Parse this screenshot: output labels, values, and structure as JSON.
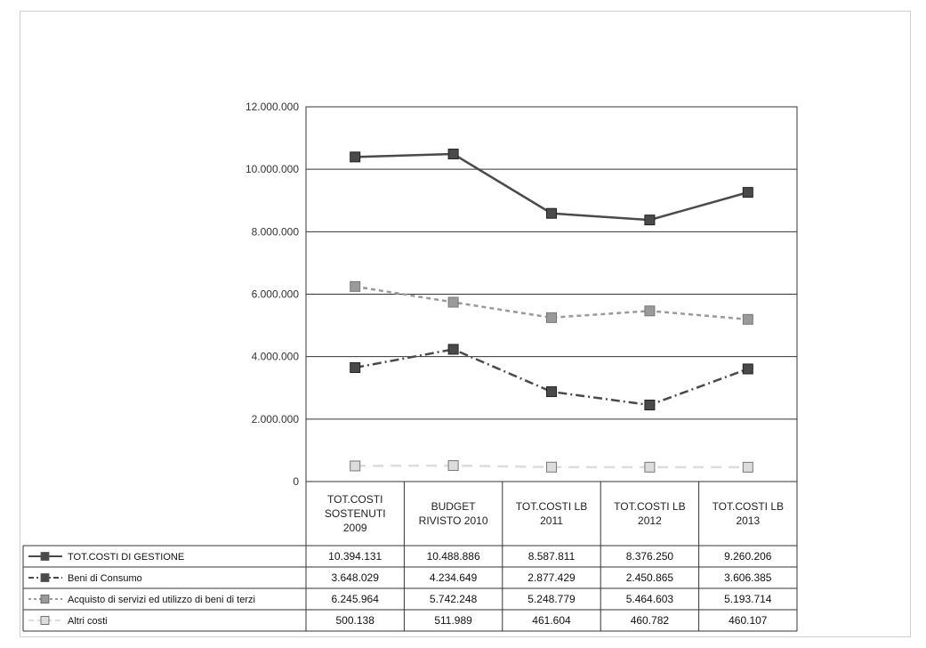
{
  "chart_data": {
    "type": "line",
    "ylim": [
      0,
      12000000
    ],
    "y_ticks": [
      "0",
      "2.000.000",
      "4.000.000",
      "6.000.000",
      "8.000.000",
      "10.000.000",
      "12.000.000"
    ],
    "y_tick_values": [
      0,
      2000000,
      4000000,
      6000000,
      8000000,
      10000000,
      12000000
    ],
    "categories": [
      [
        "TOT.COSTI",
        "SOSTENUTI",
        "2009"
      ],
      [
        "BUDGET",
        "RIVISTO 2010"
      ],
      [
        "TOT.COSTI LB",
        "2011"
      ],
      [
        "TOT.COSTI LB",
        "2012"
      ],
      [
        "TOT.COSTI LB",
        "2013"
      ]
    ],
    "grid": true,
    "legend_placement": "data table below chart",
    "series": [
      {
        "name": "TOT.COSTI DI GESTIONE",
        "values": [
          10394131,
          10488886,
          8587811,
          8376250,
          9260206
        ],
        "labels": [
          "10.394.131",
          "10.488.886",
          "8.587.811",
          "8.376.250",
          "9.260.206"
        ],
        "color": "#4a4a4a",
        "dash": "solid"
      },
      {
        "name": "Beni di Consumo",
        "values": [
          3648029,
          4234649,
          2877429,
          2450865,
          3606385
        ],
        "labels": [
          "3.648.029",
          "4.234.649",
          "2.877.429",
          "2.450.865",
          "3.606.385"
        ],
        "color": "#4a4a4a",
        "dash": "dashdot"
      },
      {
        "name": "Acquisto di servizi ed utilizzo di beni di terzi",
        "values": [
          6245964,
          5742248,
          5248779,
          5464603,
          5193714
        ],
        "labels": [
          "6.245.964",
          "5.742.248",
          "5.248.779",
          "5.464.603",
          "5.193.714"
        ],
        "color": "#9a9a9a",
        "dash": "dashed"
      },
      {
        "name": "Altri costi",
        "values": [
          500138,
          511989,
          461604,
          460782,
          460107
        ],
        "labels": [
          "500.138",
          "511.989",
          "461.604",
          "460.782",
          "460.107"
        ],
        "color": "#dcdcdc",
        "dash": "longdash"
      }
    ]
  }
}
